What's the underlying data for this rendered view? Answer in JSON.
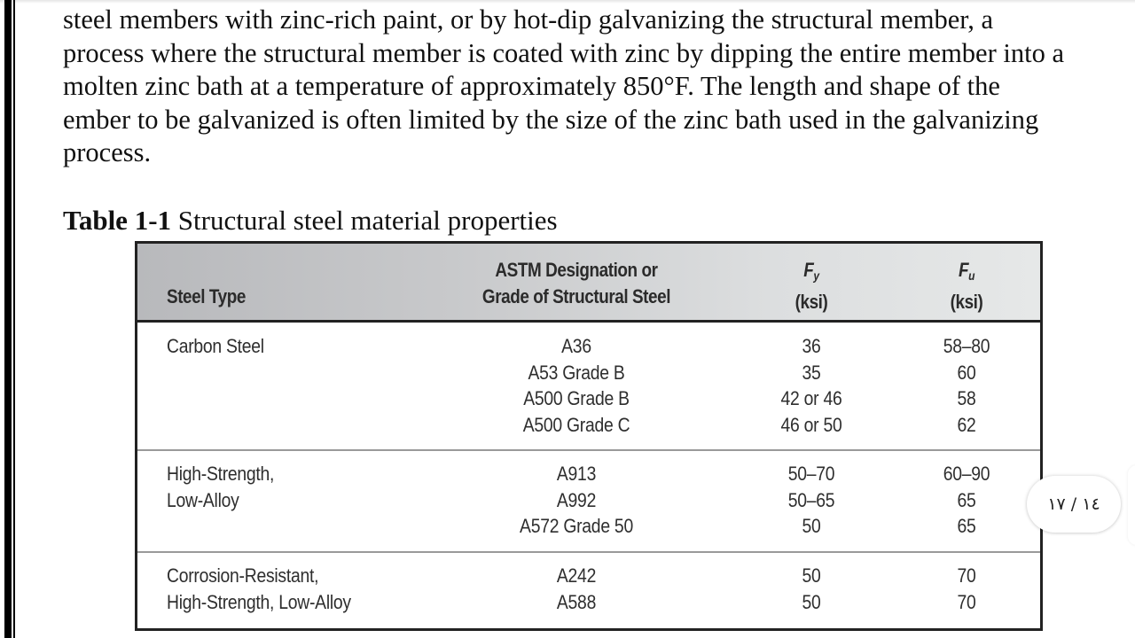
{
  "document": {
    "body_lines": [
      "steel members with zinc-rich paint, or by hot-dip galvanizing the structural member, a",
      "process where the structural member is coated with zinc by dipping the entire member into a",
      "molten zinc bath at a temperature of approximately 850°F. The length and shape of the",
      "ember to be galvanized is often limited by the size of the zinc bath used in the galvanizing",
      "process."
    ],
    "caption": {
      "number": "Table 1-1",
      "title": " Structural steel material properties"
    },
    "table": {
      "headers": {
        "steel_type": "Steel Type",
        "astm_line1": "ASTM Designation or",
        "astm_line2": "Grade of Structural Steel",
        "fy_symbol": "F",
        "fy_sub": "y",
        "fy_unit": "(ksi)",
        "fu_symbol": "F",
        "fu_sub": "u",
        "fu_unit": "(ksi)"
      },
      "rows": [
        {
          "steel_type": [
            "Carbon Steel"
          ],
          "astm": [
            "A36",
            "A53 Grade B",
            "A500 Grade B",
            "A500 Grade C"
          ],
          "fy": [
            "36",
            "35",
            "42 or 46",
            "46 or 50"
          ],
          "fu": [
            "58–80",
            "60",
            "58",
            "62"
          ]
        },
        {
          "steel_type": [
            "High-Strength,",
            "Low-Alloy"
          ],
          "astm": [
            "A913",
            "A992",
            "A572 Grade 50"
          ],
          "fy": [
            "50–70",
            "50–65",
            "50"
          ],
          "fu": [
            "60–90",
            "65",
            "65"
          ]
        },
        {
          "steel_type": [
            "Corrosion-Resistant,",
            "High-Strength, Low-Alloy"
          ],
          "astm": [
            "A242",
            "A588"
          ],
          "fy": [
            "50",
            "50"
          ],
          "fu": [
            "70",
            "70"
          ]
        }
      ]
    }
  },
  "viewer": {
    "page_indicator": "١٤ / ١٧"
  },
  "colors": {
    "header_gradient_left": "#b8b9bc",
    "header_gradient_right": "#e6e8e8",
    "table_border": "#222222",
    "row_divider": "#9a9a9a"
  }
}
